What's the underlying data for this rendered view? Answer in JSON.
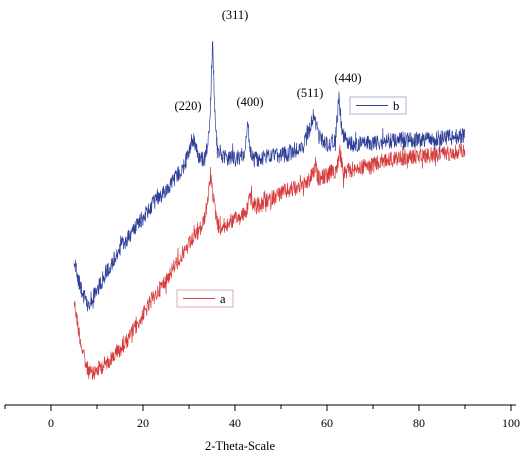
{
  "chart_data": {
    "type": "line",
    "title": "",
    "xlabel": "2-Theta-Scale",
    "ylabel": "",
    "xlim": [
      -10,
      100
    ],
    "x_ticks": [
      0,
      20,
      40,
      60,
      80,
      100
    ],
    "grid": false,
    "legend": "inline",
    "series": [
      {
        "name": "a",
        "color": "#d63a3a",
        "noise": 8,
        "x": [
          5,
          6,
          7,
          8,
          9,
          10,
          12,
          15,
          18,
          20,
          22,
          25,
          27,
          28,
          30,
          31,
          32,
          33,
          34,
          34.7,
          35.5,
          36.3,
          37,
          39,
          41,
          42.5,
          43.2,
          44,
          46,
          48,
          50,
          52,
          54,
          56,
          57,
          57.5,
          58,
          60,
          62,
          62.8,
          63.6,
          65,
          67,
          70,
          73,
          76,
          80,
          85,
          90
        ],
        "y": [
          300,
          330,
          355,
          370,
          375,
          370,
          363,
          350,
          330,
          315,
          300,
          280,
          265,
          258,
          245,
          238,
          232,
          225,
          205,
          175,
          205,
          225,
          228,
          222,
          218,
          212,
          195,
          205,
          205,
          198,
          193,
          190,
          186,
          182,
          172,
          165,
          178,
          175,
          170,
          152,
          175,
          170,
          168,
          165,
          160,
          158,
          156,
          154,
          150
        ]
      },
      {
        "name": "b",
        "color": "#2f3f99",
        "noise": 8,
        "x": [
          5,
          6,
          7,
          8,
          9,
          10,
          12,
          15,
          18,
          20,
          22,
          25,
          27,
          28,
          29,
          30,
          30.8,
          31.6,
          32.5,
          33.5,
          34.5,
          35.1,
          35.8,
          36.6,
          38,
          40,
          42,
          42.8,
          43.3,
          44,
          46,
          50,
          53,
          55,
          56.5,
          57.2,
          58,
          60,
          61.8,
          62.6,
          63.4,
          65,
          70,
          75,
          80,
          85,
          90
        ],
        "y": [
          260,
          280,
          295,
          302,
          298,
          290,
          272,
          248,
          230,
          218,
          205,
          190,
          178,
          172,
          165,
          150,
          138,
          150,
          160,
          158,
          130,
          40,
          135,
          152,
          158,
          158,
          155,
          125,
          150,
          160,
          158,
          155,
          152,
          145,
          125,
          112,
          135,
          145,
          140,
          98,
          135,
          145,
          143,
          140,
          140,
          138,
          136
        ]
      }
    ],
    "annotations": [
      {
        "text": "(220)",
        "x": 30.2
      },
      {
        "text": "(311)",
        "x": 35.6
      },
      {
        "text": "(400)",
        "x": 43.4
      },
      {
        "text": "(511)",
        "x": 57.4
      },
      {
        "text": "(440)",
        "x": 62.8
      }
    ]
  }
}
